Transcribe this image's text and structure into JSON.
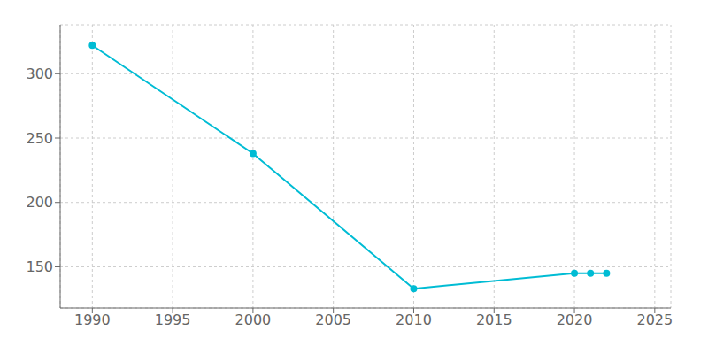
{
  "chart_data": {
    "type": "line",
    "x": [
      1990,
      2000,
      2010,
      2020,
      2021,
      2022
    ],
    "values": [
      322,
      238,
      133,
      145,
      145,
      145
    ],
    "color": "#00bcd4",
    "marker": "circle",
    "xlim": [
      1988,
      2026
    ],
    "ylim": [
      118,
      338
    ],
    "xticks": [
      1990,
      1995,
      2000,
      2005,
      2010,
      2015,
      2020,
      2025
    ],
    "yticks": [
      150,
      200,
      250,
      300
    ],
    "grid": true
  }
}
